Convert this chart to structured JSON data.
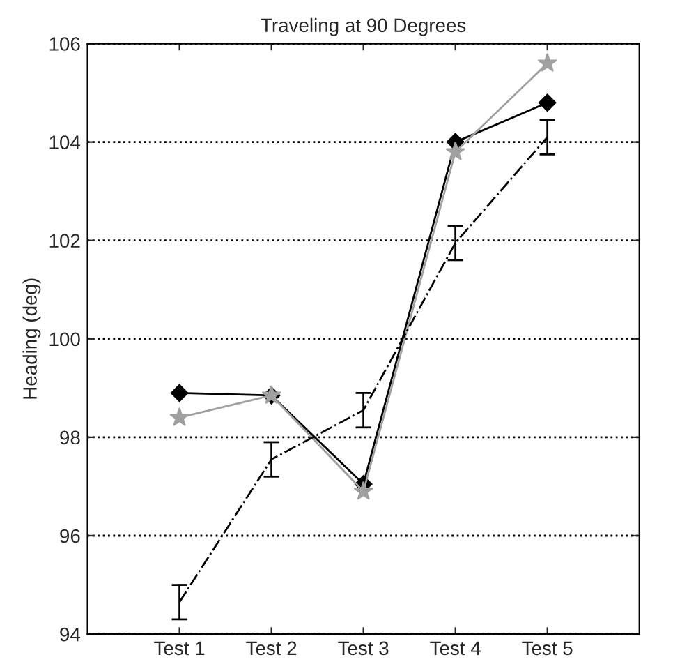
{
  "chart_data": {
    "type": "line",
    "title": "Traveling at 90 Degrees",
    "ylabel": "Heading (deg)",
    "categories": [
      "Test 1",
      "Test 2",
      "Test 3",
      "Test 4",
      "Test 5"
    ],
    "series": [
      {
        "color": "#000000",
        "marker": "diamond",
        "line_style": "solid",
        "values": [
          98.9,
          98.85,
          97.05,
          104.0,
          104.8
        ]
      },
      {
        "color": "#a0a0a0",
        "marker": "star",
        "line_style": "solid",
        "values": [
          98.4,
          98.85,
          96.9,
          103.8,
          105.6
        ]
      },
      {
        "color": "#000000",
        "marker": "none",
        "line_style": "dashdot",
        "values": [
          94.65,
          97.55,
          98.55,
          101.95,
          104.1
        ],
        "errors": [
          0.35,
          0.35,
          0.35,
          0.35,
          0.35
        ]
      }
    ],
    "ylim": [
      94,
      106
    ],
    "yticks": [
      94,
      96,
      98,
      100,
      102,
      104,
      106
    ],
    "grid": "y"
  }
}
